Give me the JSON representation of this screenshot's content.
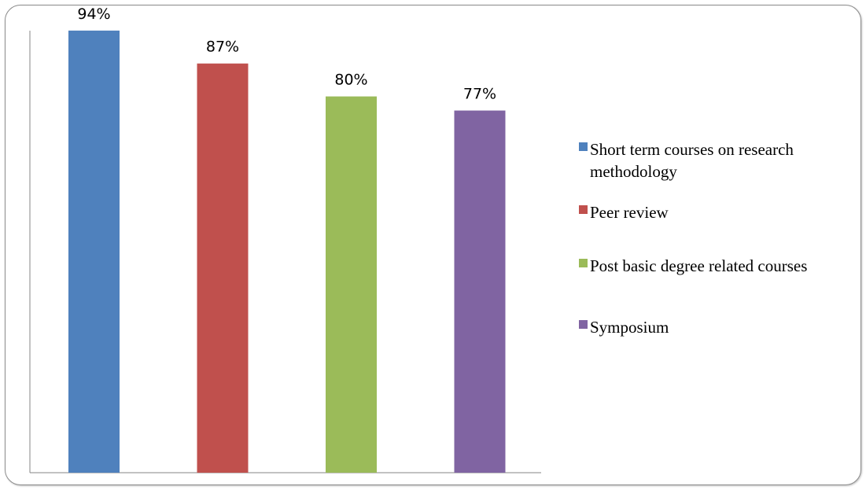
{
  "chart_data": {
    "type": "bar",
    "categories": [
      "Short term courses on research methodology",
      "Peer review",
      "Post basic degree related courses",
      "Symposium"
    ],
    "values": [
      94,
      87,
      80,
      77
    ],
    "value_labels": [
      "94%",
      "87%",
      "80%",
      "77%"
    ],
    "colors": [
      "#4f81bd",
      "#c0504d",
      "#9bbb59",
      "#8064a2"
    ],
    "ylim": [
      0,
      100
    ],
    "grid": false,
    "legend_position": "right"
  }
}
